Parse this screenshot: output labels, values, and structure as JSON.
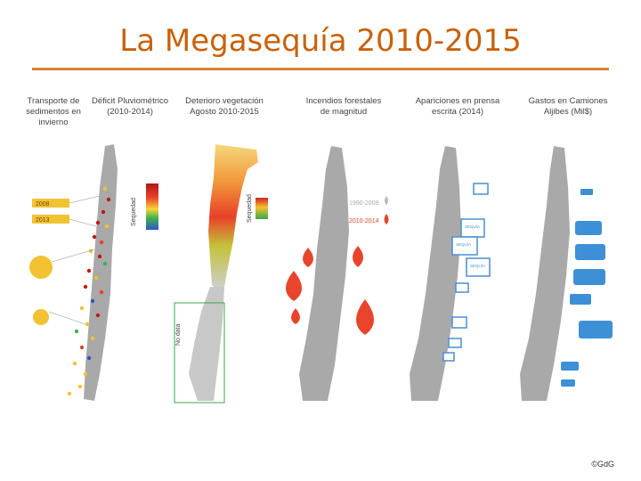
{
  "title": "La Megasequía 2010-2015",
  "columns": [
    {
      "label": "Transporte de sedimentos en invierno"
    },
    {
      "label": "Déficit Pluviométrico (2010-2014)"
    },
    {
      "label": "Deterioro vegetación Agosto 2010-2015"
    },
    {
      "label": "Incendios forestales de magnitud"
    },
    {
      "label": "Apariciones en prensa escrita (2014)"
    },
    {
      "label": "Gastos en Camiones Aljibes (Mil$)"
    }
  ],
  "sediment_legend": {
    "year_a": "2008",
    "year_b": "2013"
  },
  "scale_label": "Sequedad",
  "no_data_label": "No data",
  "fires_legend": {
    "period_a": "1990-2009",
    "period_b": "2010-2014"
  },
  "press_label": "SEQUÍA",
  "copyright": "©GdG",
  "colors": {
    "title": "#c8620a",
    "rule": "#d9822b",
    "map": "#a9a9a9",
    "fire": "#e8452c",
    "truck": "#3d8fd6",
    "press": "#4a8fd0"
  }
}
